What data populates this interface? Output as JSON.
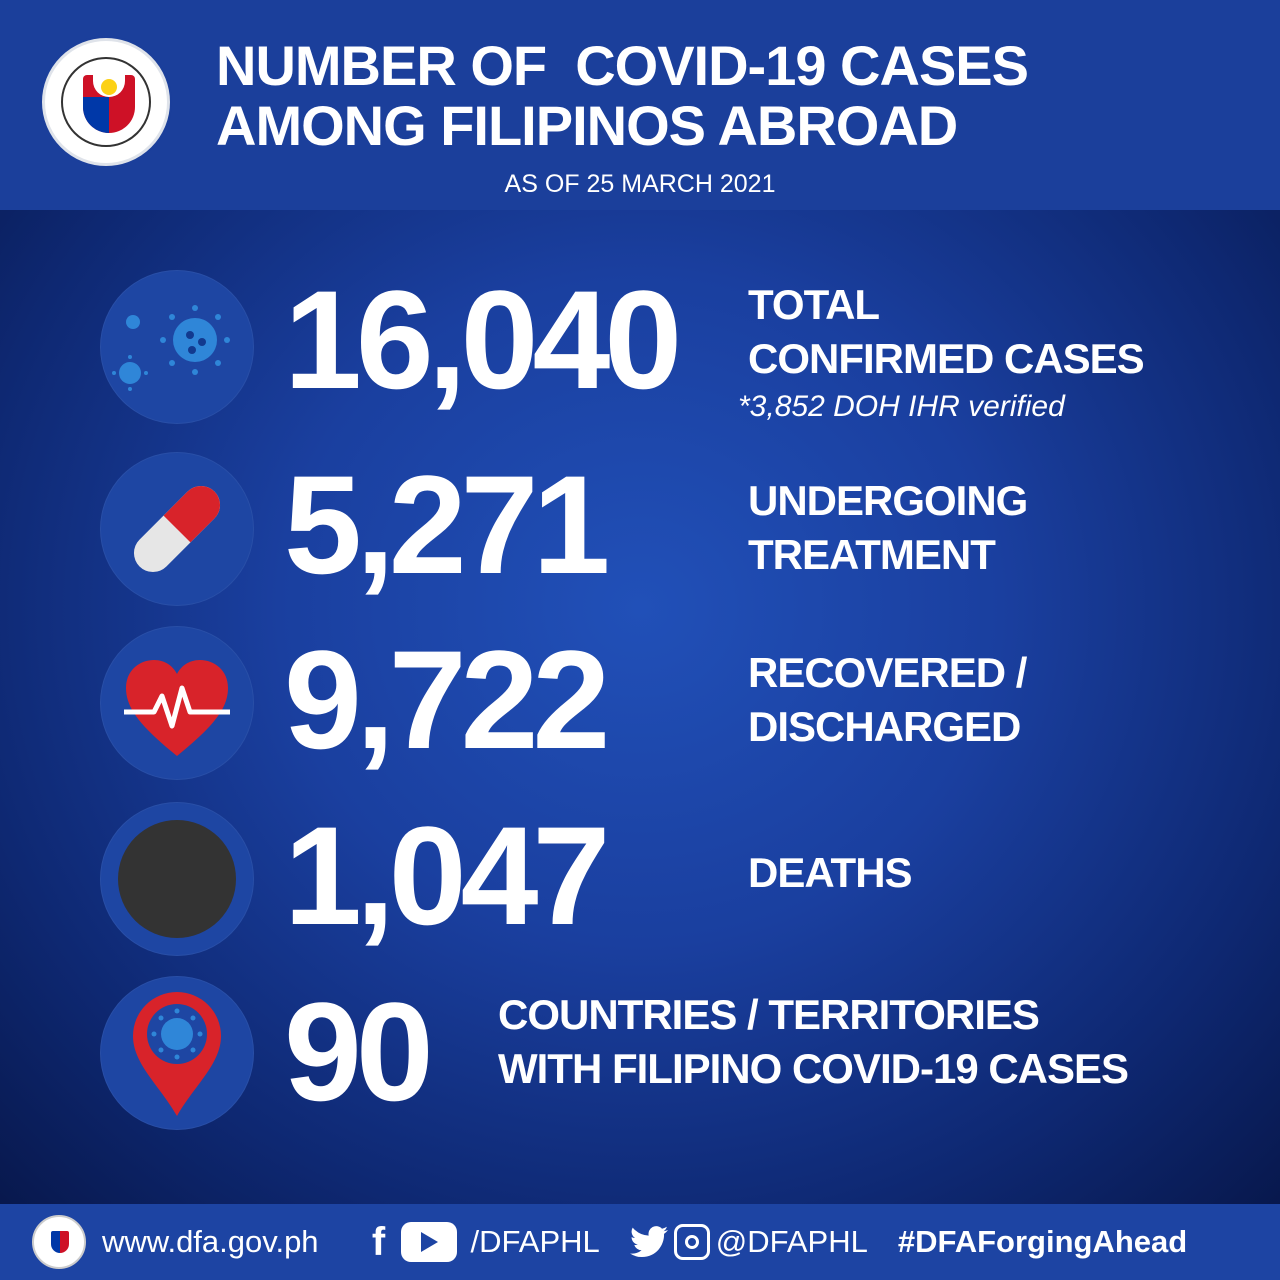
{
  "header": {
    "logo_text": "DEPARTMENT OF FOREIGN AFFAIRS · PHILIPPINES · REPUBLIKA NG PILIPINAS",
    "title_line1": "NUMBER OF  COVID-19 CASES",
    "title_line2": "AMONG FILIPINOS ABROAD",
    "date": "AS OF 25 MARCH 2021"
  },
  "stats": [
    {
      "icon": "virus-icon",
      "value": "16,040",
      "label_line1": "TOTAL",
      "label_line2": "CONFIRMED CASES",
      "note": "*3,852 DOH IHR verified"
    },
    {
      "icon": "pill-capsule-icon",
      "value": "5,271",
      "label_line1": "UNDERGOING",
      "label_line2": "TREATMENT"
    },
    {
      "icon": "heartbeat-icon",
      "value": "9,722",
      "label_line1": "RECOVERED /",
      "label_line2": "DISCHARGED"
    },
    {
      "icon": "black-circle-icon",
      "value": "1,047",
      "label_line1": "DEATHS"
    },
    {
      "icon": "map-pin-virus-icon",
      "value": "90",
      "label_line1": "COUNTRIES / TERRITORIES",
      "label_line2": "WITH FILIPINO COVID-19 CASES"
    }
  ],
  "footer": {
    "website": "www.dfa.gov.ph",
    "fb_yt_handle": "/DFAPHL",
    "tw_ig_handle": "@DFAPHL",
    "hashtag": "#DFAForgingAhead"
  },
  "colors": {
    "header_bg": "#1b3f9b",
    "footer_bg": "#1d44a3",
    "accent_red": "#d8232a",
    "virus_blue": "#2f86d8"
  }
}
